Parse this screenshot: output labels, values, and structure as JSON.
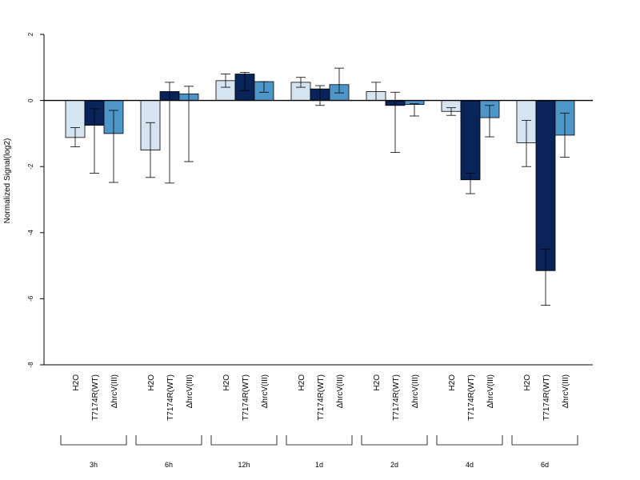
{
  "chart_data": {
    "type": "bar",
    "title": "",
    "ylabel": "Normalized Signal(log2)",
    "ylim": [
      -8,
      2
    ],
    "yticks": [
      2,
      0,
      -2,
      -4,
      -6,
      -8
    ],
    "grid": false,
    "legend": "none",
    "zero_line": true,
    "groups": [
      "3h",
      "6h",
      "12h",
      "1d",
      "2d",
      "4d",
      "6d"
    ],
    "series": [
      {
        "label": "H2O",
        "color": "#d6e4f2",
        "values": [
          -1.12,
          -1.5,
          0.6,
          0.55,
          0.27,
          -0.33,
          -1.28
        ],
        "err_low": [
          -1.4,
          -2.33,
          0.4,
          0.4,
          0.0,
          -0.45,
          -2.0
        ],
        "err_high": [
          -0.82,
          -0.67,
          0.8,
          0.7,
          0.55,
          -0.22,
          -0.6
        ]
      },
      {
        "label": "T7174R(WT)",
        "color": "#082459",
        "values": [
          -0.75,
          0.27,
          0.8,
          0.35,
          -0.15,
          -2.4,
          -5.15
        ],
        "err_low": [
          -2.2,
          -2.5,
          0.3,
          -0.15,
          -1.57,
          -2.82,
          -6.2
        ],
        "err_high": [
          -0.25,
          0.55,
          0.85,
          0.45,
          0.25,
          -2.2,
          -4.5
        ]
      },
      {
        "label": "ΔhrcV(III)",
        "color": "#4f96c8",
        "values": [
          -1.0,
          0.2,
          0.57,
          0.48,
          -0.12,
          -0.52,
          -1.05
        ],
        "err_low": [
          -2.48,
          -1.85,
          0.25,
          0.23,
          -0.47,
          -1.1,
          -1.72
        ],
        "err_high": [
          -0.3,
          0.43,
          0.57,
          0.98,
          -0.1,
          -0.15,
          -0.38
        ]
      }
    ]
  }
}
